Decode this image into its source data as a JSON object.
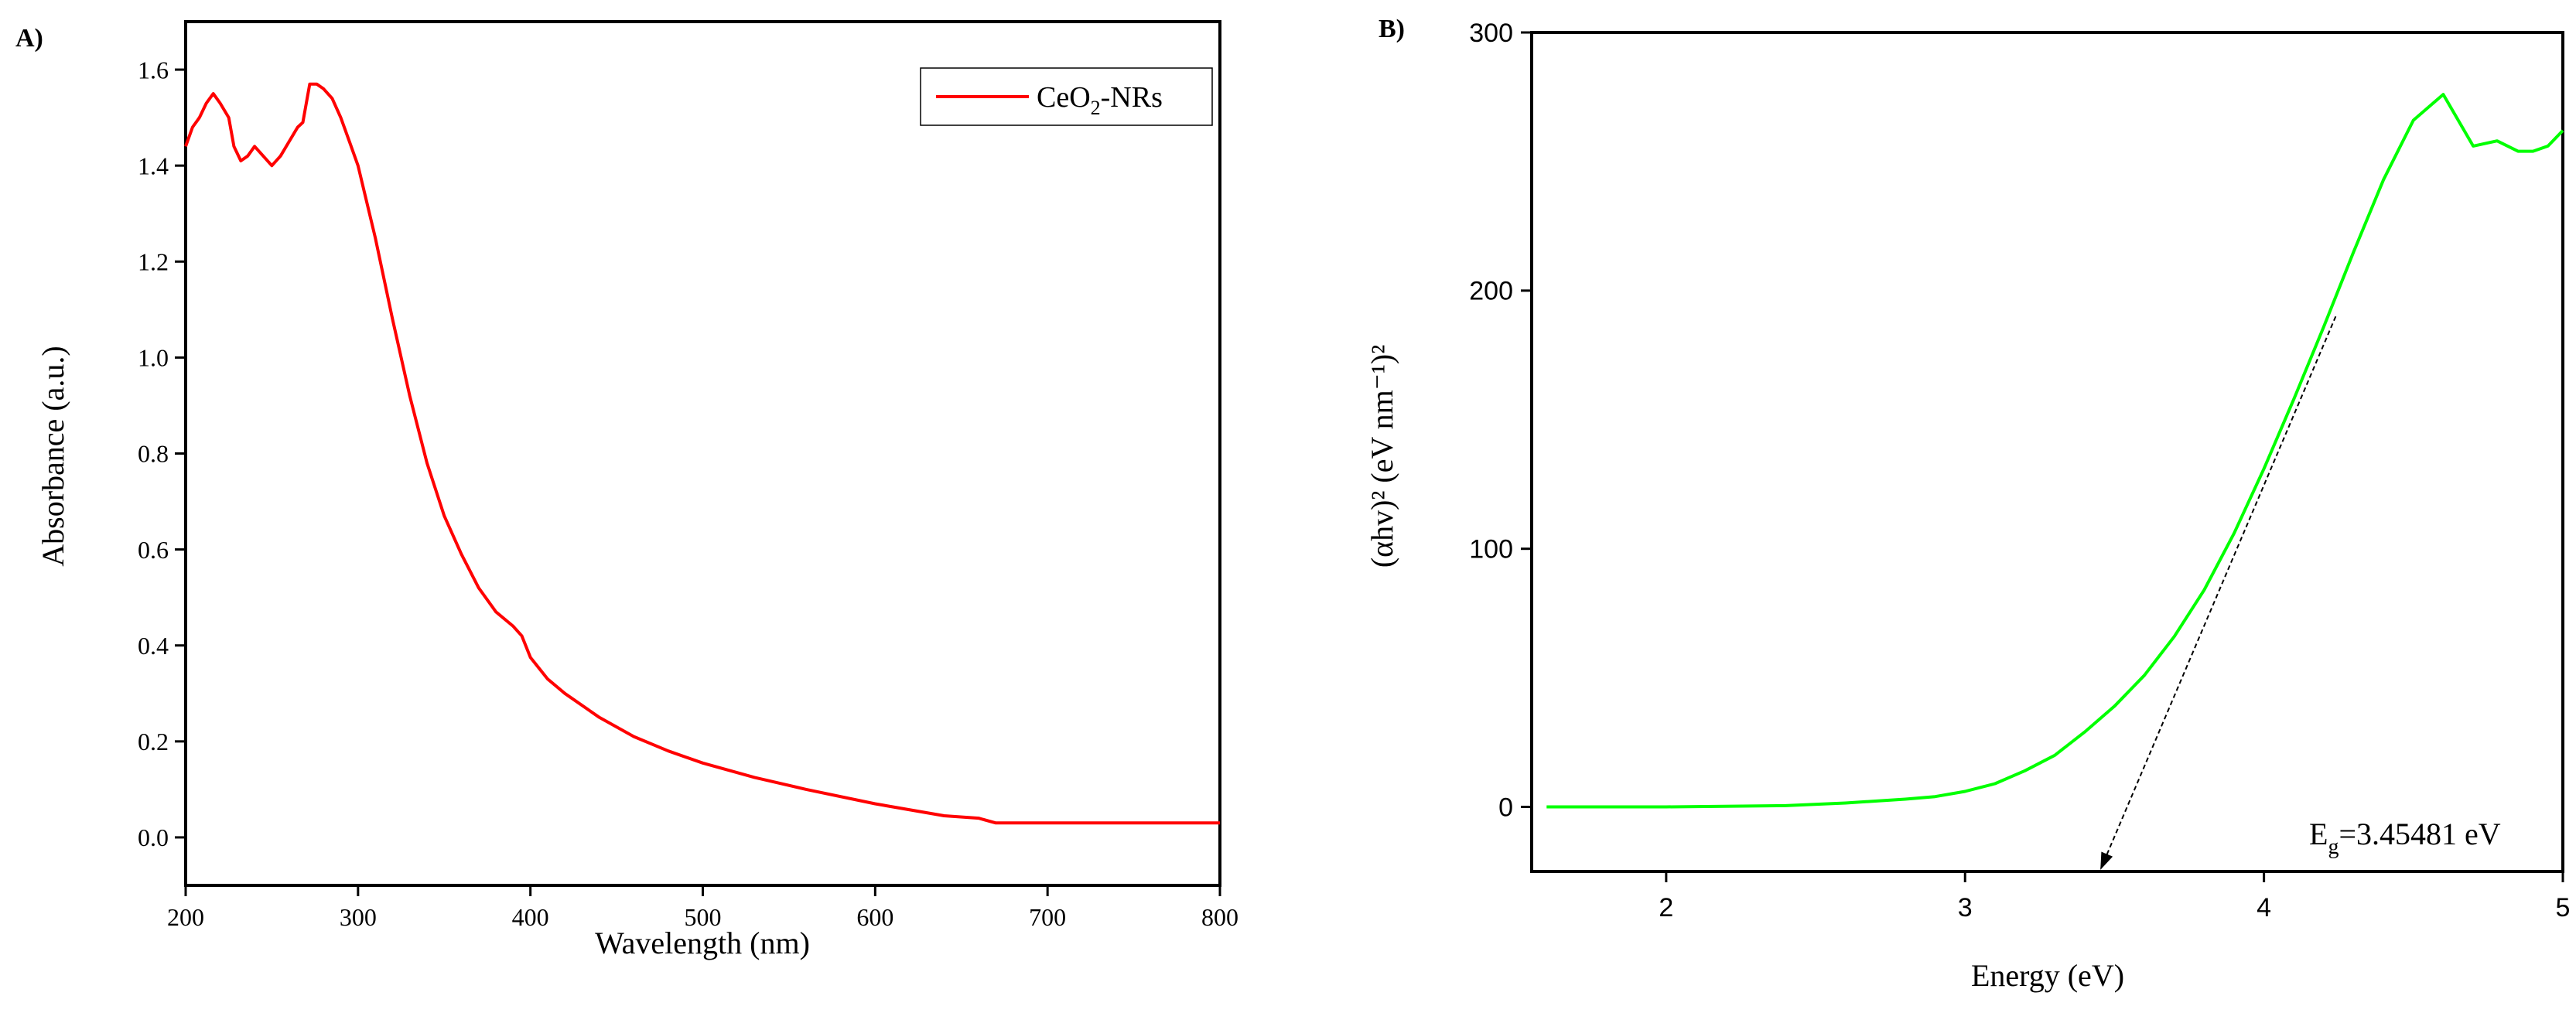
{
  "chart_data": [
    {
      "type": "line",
      "panel_label": "A)",
      "xlabel": "Wavelength (nm)",
      "ylabel": "Absorbance (a.u.)",
      "xlim": [
        200,
        800
      ],
      "ylim": [
        -0.1,
        1.7
      ],
      "xticks": [
        200,
        300,
        400,
        500,
        600,
        700,
        800
      ],
      "xtick_labels": [
        "200",
        "300",
        "400",
        "500",
        "600",
        "700",
        "800"
      ],
      "yticks": [
        0.0,
        0.2,
        0.4,
        0.6,
        0.8,
        1.0,
        1.2,
        1.4,
        1.6
      ],
      "ytick_labels": [
        "0.0",
        "0.2",
        "0.4",
        "0.6",
        "0.8",
        "1.0",
        "1.2",
        "1.4",
        "1.6"
      ],
      "grid": false,
      "legend": {
        "position": "top-right",
        "entries": [
          {
            "text": "CeO",
            "subscript": "2",
            "suffix": "-NRs",
            "color": "#ff0000"
          }
        ]
      },
      "series": [
        {
          "name": "CeO2-NRs",
          "color": "#ff0000",
          "x": [
            200,
            204,
            208,
            212,
            216,
            220,
            225,
            228,
            232,
            236,
            240,
            245,
            250,
            255,
            260,
            265,
            268,
            272,
            276,
            280,
            285,
            290,
            295,
            300,
            310,
            320,
            330,
            340,
            350,
            360,
            370,
            380,
            390,
            395,
            400,
            410,
            420,
            440,
            460,
            480,
            500,
            530,
            560,
            600,
            640,
            660,
            670,
            700,
            750,
            800
          ],
          "y": [
            1.44,
            1.48,
            1.5,
            1.53,
            1.55,
            1.53,
            1.5,
            1.44,
            1.41,
            1.42,
            1.44,
            1.42,
            1.4,
            1.42,
            1.45,
            1.48,
            1.49,
            1.57,
            1.57,
            1.56,
            1.54,
            1.5,
            1.45,
            1.4,
            1.25,
            1.08,
            0.92,
            0.78,
            0.67,
            0.59,
            0.52,
            0.47,
            0.44,
            0.42,
            0.375,
            0.33,
            0.3,
            0.25,
            0.21,
            0.18,
            0.155,
            0.125,
            0.1,
            0.07,
            0.045,
            0.04,
            0.03,
            0.03,
            0.03,
            0.03
          ]
        }
      ]
    },
    {
      "type": "line",
      "panel_label": "B)",
      "xlabel": "Energy (eV)",
      "ylabel": "(αhv)² (eV nm⁻¹)²",
      "xlim": [
        1.55,
        5.0
      ],
      "ylim": [
        -25,
        300
      ],
      "xticks": [
        2,
        3,
        4,
        5
      ],
      "xtick_labels": [
        "2",
        "3",
        "4",
        "5"
      ],
      "yticks": [
        0,
        100,
        200,
        300
      ],
      "ytick_labels": [
        "0",
        "100",
        "200",
        "300"
      ],
      "grid": false,
      "series": [
        {
          "name": "(αhv)^2",
          "color": "#00ff00",
          "x": [
            1.6,
            2.0,
            2.4,
            2.6,
            2.8,
            2.9,
            3.0,
            3.1,
            3.2,
            3.3,
            3.4,
            3.5,
            3.6,
            3.7,
            3.8,
            3.9,
            4.0,
            4.1,
            4.2,
            4.3,
            4.4,
            4.5,
            4.6,
            4.7,
            4.78,
            4.85,
            4.9,
            4.95,
            5.0
          ],
          "y": [
            0,
            0,
            0.5,
            1.5,
            3,
            4,
            6,
            9,
            14,
            20,
            29,
            39,
            51,
            66,
            84,
            106,
            131,
            158,
            186,
            215,
            243,
            266,
            276,
            256,
            258,
            254,
            254,
            256,
            262
          ]
        }
      ],
      "annotation": {
        "label_main": "E",
        "label_sub": "g",
        "label_value": "=3.45481 eV",
        "arrow_from": [
          4.24,
          190
        ],
        "arrow_to": [
          3.4548,
          -25
        ]
      }
    }
  ]
}
